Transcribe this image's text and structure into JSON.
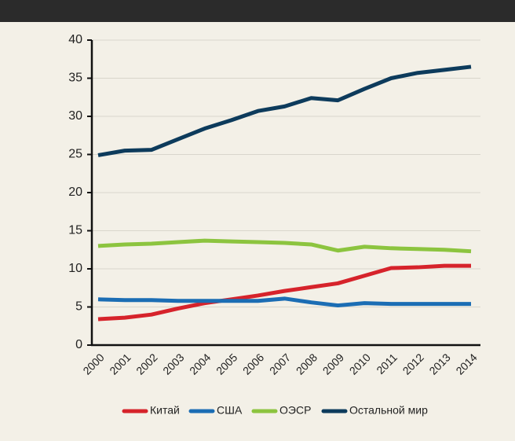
{
  "chart_data": {
    "type": "line",
    "categories": [
      "2000",
      "2001",
      "2002",
      "2003",
      "2004",
      "2005",
      "2006",
      "2007",
      "2008",
      "2009",
      "2010",
      "2011",
      "2012",
      "2013",
      "2014"
    ],
    "series": [
      {
        "name": "Китай",
        "color": "#d6232b",
        "values": [
          3.4,
          3.6,
          4.0,
          4.8,
          5.5,
          6.0,
          6.5,
          7.1,
          7.6,
          8.1,
          9.1,
          10.1,
          10.2,
          10.4,
          10.4
        ]
      },
      {
        "name": "США",
        "color": "#1b6db4",
        "values": [
          6.0,
          5.9,
          5.9,
          5.8,
          5.8,
          5.8,
          5.8,
          6.1,
          5.6,
          5.2,
          5.5,
          5.4,
          5.4,
          5.4,
          5.4
        ]
      },
      {
        "name": "ОЭСР",
        "color": "#8cc43f",
        "values": [
          13.0,
          13.2,
          13.3,
          13.5,
          13.7,
          13.6,
          13.5,
          13.4,
          13.2,
          12.4,
          12.9,
          12.7,
          12.6,
          12.5,
          12.3
        ]
      },
      {
        "name": "Остальной мир",
        "color": "#0d3b5c",
        "values": [
          24.9,
          25.5,
          25.6,
          27.0,
          28.4,
          29.5,
          30.7,
          31.3,
          32.4,
          32.1,
          33.6,
          35.0,
          35.7,
          36.1,
          36.5
        ]
      }
    ],
    "ylim": [
      0,
      40
    ],
    "yticks": [
      0,
      5,
      10,
      15,
      20,
      25,
      30,
      35,
      40
    ],
    "grid": true
  }
}
